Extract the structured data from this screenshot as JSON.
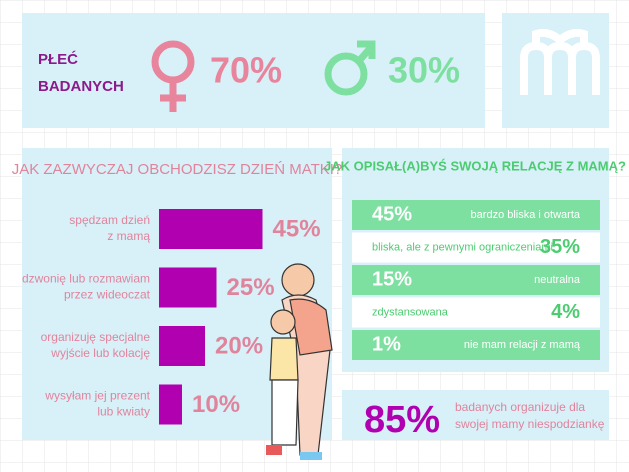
{
  "gender": {
    "title": [
      "PŁEĆ",
      "BADANYCH"
    ],
    "female": "70%",
    "male": "30%"
  },
  "celebration": {
    "title": "JAK ZAZWYCZAJ OBCHODZISZ DZIEŃ MATKI?",
    "categories": [
      [
        "spędzam dzień",
        "z mamą"
      ],
      [
        "dzwonię lub rozmawiam",
        "przez wideoczat"
      ],
      [
        "organizuję specjalne",
        "wyjście lub kolację"
      ],
      [
        "wysyłam jej prezent",
        "lub kwiaty"
      ]
    ],
    "values": [
      45,
      25,
      20,
      10
    ],
    "value_labels": [
      "45%",
      "25%",
      "20%",
      "10%"
    ],
    "color": "#b000b0"
  },
  "relation": {
    "title": "JAK OPISAŁ(A)BYŚ SWOJĄ RELACJĘ Z MAMĄ?",
    "rows": [
      {
        "value": "45%",
        "label": "bardzo bliska i otwarta"
      },
      {
        "value": "35%",
        "label": "bliska, ale z pewnymi ograniczeniami"
      },
      {
        "value": "15%",
        "label": "neutralna"
      },
      {
        "value": "4%",
        "label": "zdystansowana"
      },
      {
        "value": "1%",
        "label": "nie mam relacji z mamą"
      }
    ]
  },
  "surprise": {
    "value": "85%",
    "text": [
      "badanych organizuje dla",
      "swojej mamy niespodziankę"
    ]
  }
}
